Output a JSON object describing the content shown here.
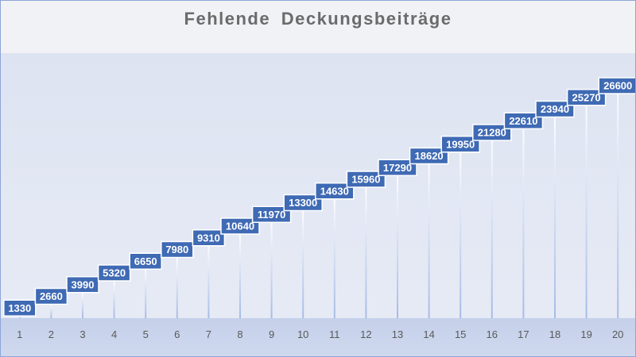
{
  "chart_data": {
    "type": "bar",
    "title": "Fehlende  Deckungsbeiträge",
    "categories": [
      "1",
      "2",
      "3",
      "4",
      "5",
      "6",
      "7",
      "8",
      "9",
      "10",
      "11",
      "12",
      "13",
      "14",
      "15",
      "16",
      "17",
      "18",
      "19",
      "20"
    ],
    "values": [
      1330,
      2660,
      3990,
      5320,
      6650,
      7980,
      9310,
      10640,
      11970,
      13300,
      14630,
      15960,
      17290,
      18620,
      19950,
      21280,
      22610,
      23940,
      25270,
      26600
    ],
    "data_labels": [
      "1330",
      "2660",
      "3990",
      "5320",
      "6650",
      "7980",
      "9310",
      "10640",
      "11970",
      "13300",
      "14630",
      "15960",
      "17290",
      "18620",
      "19950",
      "21280",
      "22610",
      "23940",
      "25270",
      "26600"
    ],
    "xlabel": "",
    "ylabel": "",
    "ylim": [
      0,
      26600
    ],
    "grid": false,
    "legend": "none",
    "colors": {
      "label_fill": "#3f6ab4",
      "label_border": "#ffffff",
      "bar_line": "#a9bde6",
      "label_text": "#ffffff",
      "tick_text": "#595959",
      "title_text": "#6b6b6b"
    }
  }
}
